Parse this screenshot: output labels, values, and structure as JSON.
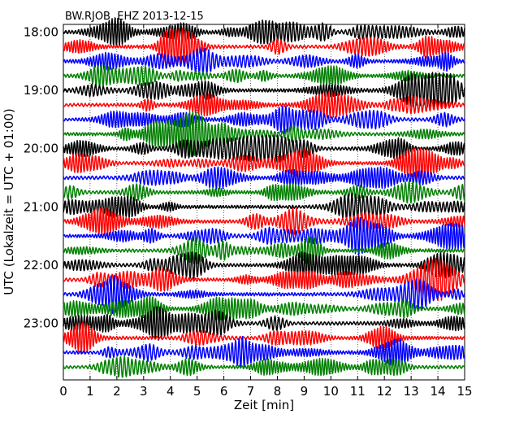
{
  "chart_data": {
    "type": "line",
    "title": "BW.RJOB..EHZ 2013-12-15",
    "xlabel": "Zeit  [min]",
    "ylabel": "UTC (Lokalzeit = UTC + 01:00)",
    "xlim": [
      0,
      15
    ],
    "x_ticks": [
      "0",
      "1",
      "2",
      "3",
      "4",
      "5",
      "6",
      "7",
      "8",
      "9",
      "10",
      "11",
      "12",
      "13",
      "14",
      "15"
    ],
    "y_ticks": [
      "18:00",
      "19:00",
      "20:00",
      "21:00",
      "22:00",
      "23:00"
    ],
    "grid": true,
    "trace_minutes": 15,
    "trace_start_times": [
      "18:00",
      "18:15",
      "18:30",
      "18:45",
      "19:00",
      "19:15",
      "19:30",
      "19:45",
      "20:00",
      "20:15",
      "20:30",
      "20:45",
      "21:00",
      "21:15",
      "21:30",
      "21:45",
      "22:00",
      "22:15",
      "22:30",
      "22:45",
      "23:00",
      "23:15",
      "23:30",
      "23:45"
    ],
    "colors": [
      "#000000",
      "#ff0000",
      "#0000ff",
      "#008000"
    ]
  }
}
